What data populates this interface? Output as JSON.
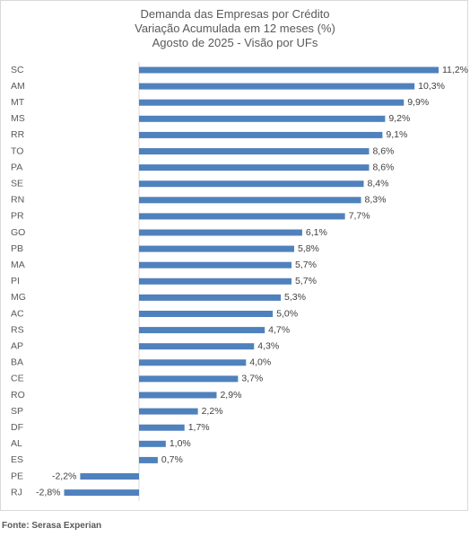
{
  "chart_data": {
    "type": "bar",
    "orientation": "horizontal",
    "title": "Demanda das Empresas por Crédito",
    "subtitle_lines": [
      "Variação Acumulada em 12 meses (%)",
      "Agosto de 2025 - Visão por UFs"
    ],
    "categories": [
      "SC",
      "AM",
      "MT",
      "MS",
      "RR",
      "TO",
      "PA",
      "SE",
      "RN",
      "PR",
      "GO",
      "PB",
      "MA",
      "PI",
      "MG",
      "AC",
      "RS",
      "AP",
      "BA",
      "CE",
      "RO",
      "SP",
      "DF",
      "AL",
      "ES",
      "PE",
      "RJ"
    ],
    "values": [
      11.2,
      10.3,
      9.9,
      9.2,
      9.1,
      8.6,
      8.6,
      8.4,
      8.3,
      7.7,
      6.1,
      5.8,
      5.7,
      5.7,
      5.3,
      5.0,
      4.7,
      4.3,
      4.0,
      3.7,
      2.9,
      2.2,
      1.7,
      1.0,
      0.7,
      -2.2,
      -2.8
    ],
    "value_labels": [
      "11,2%",
      "10,3%",
      "9,9%",
      "9,2%",
      "9,1%",
      "8,6%",
      "8,6%",
      "8,4%",
      "8,3%",
      "7,7%",
      "6,1%",
      "5,8%",
      "5,7%",
      "5,7%",
      "5,3%",
      "5,0%",
      "4,7%",
      "4,3%",
      "4,0%",
      "3,7%",
      "2,9%",
      "2,2%",
      "1,7%",
      "1,0%",
      "0,7%",
      "-2,2%",
      "-2,8%"
    ],
    "xlim": [
      -2.8,
      11.2
    ],
    "bar_color": "#4f81bd",
    "grid": false,
    "legend": false
  },
  "source": "Fonte: Serasa Experian"
}
